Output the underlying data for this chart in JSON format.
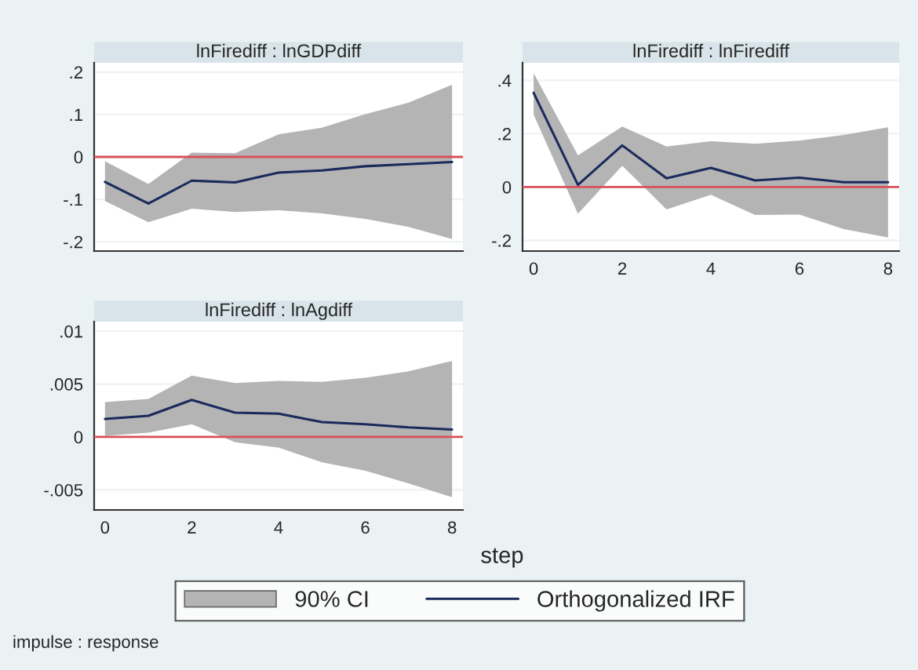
{
  "chart_data": [
    {
      "type": "line",
      "title": "lnFirediff : lnGDPdiff",
      "x": [
        0,
        1,
        2,
        3,
        4,
        5,
        6,
        7,
        8
      ],
      "xlim": [
        -0.25,
        8.25
      ],
      "xticks": [
        0,
        2,
        4,
        6,
        8
      ],
      "ylim": [
        -0.222,
        0.222
      ],
      "yticks": [
        {
          "value": -0.2,
          "label": "-.2"
        },
        {
          "value": -0.1,
          "label": "-.1"
        },
        0,
        {
          "value": 0.1,
          "label": ".1"
        },
        {
          "value": 0.2,
          "label": ".2"
        }
      ],
      "tick_labels": "y",
      "grid": "y",
      "series": [
        {
          "color": "#1a2a5c",
          "values": [
            -0.059,
            -0.11,
            -0.056,
            -0.06,
            -0.037,
            -0.032,
            -0.022,
            -0.017,
            -0.012
          ],
          "lower": [
            -0.104,
            -0.154,
            -0.122,
            -0.13,
            -0.126,
            -0.133,
            -0.146,
            -0.165,
            -0.194
          ],
          "upper": [
            -0.01,
            -0.064,
            0.01,
            0.009,
            0.053,
            0.069,
            0.101,
            0.128,
            0.17
          ]
        }
      ],
      "ref_lines": [
        {
          "axis": "y",
          "value": 0,
          "color": "#d9505a"
        }
      ]
    },
    {
      "type": "line",
      "title": "lnFirediff : lnFirediff",
      "x": [
        0,
        1,
        2,
        3,
        4,
        5,
        6,
        7,
        8
      ],
      "xlim": [
        -0.25,
        8.25
      ],
      "xticks": [
        0,
        2,
        4,
        6,
        8
      ],
      "ylim": [
        -0.24,
        0.466
      ],
      "yticks": [
        {
          "value": -0.2,
          "label": "-.2"
        },
        0,
        {
          "value": 0.2,
          "label": ".2"
        },
        {
          "value": 0.4,
          "label": ".4"
        }
      ],
      "grid": "y",
      "series": [
        {
          "color": "#1a2a5c",
          "values": [
            0.353,
            0.008,
            0.156,
            0.033,
            0.072,
            0.025,
            0.035,
            0.018,
            0.018
          ],
          "lower": [
            0.271,
            -0.1,
            0.08,
            -0.084,
            -0.029,
            -0.105,
            -0.103,
            -0.158,
            -0.189
          ],
          "upper": [
            0.427,
            0.119,
            0.227,
            0.152,
            0.172,
            0.162,
            0.174,
            0.195,
            0.224
          ]
        }
      ],
      "ref_lines": [
        {
          "axis": "y",
          "value": 0,
          "color": "#d9505a"
        }
      ]
    },
    {
      "type": "line",
      "title": "lnFirediff : lnAgdiff",
      "xlabel": "step",
      "x": [
        0,
        1,
        2,
        3,
        4,
        5,
        6,
        7,
        8
      ],
      "xlim": [
        -0.25,
        8.25
      ],
      "xticks": [
        0,
        2,
        4,
        6,
        8
      ],
      "ylim": [
        -0.0069,
        0.0109
      ],
      "yticks": [
        {
          "value": -0.005,
          "label": "-.005"
        },
        0,
        {
          "value": 0.005,
          "label": ".005"
        },
        {
          "value": 0.01,
          "label": ".01"
        }
      ],
      "grid": "y",
      "legend": "bottom",
      "series": [
        {
          "name": "Orthogonalized IRF",
          "color": "#1a2a5c",
          "values": [
            0.0017,
            0.002,
            0.0035,
            0.0023,
            0.0022,
            0.0014,
            0.0012,
            0.0009,
            0.0007
          ],
          "lower": [
            0.0001,
            0.0004,
            0.0012,
            -0.0005,
            -0.001,
            -0.0024,
            -0.0032,
            -0.0044,
            -0.0057
          ],
          "upper": [
            0.0033,
            0.0036,
            0.0058,
            0.0051,
            0.0053,
            0.0052,
            0.0056,
            0.0062,
            0.0072
          ]
        }
      ],
      "ref_lines": [
        {
          "axis": "y",
          "value": 0,
          "color": "#d9505a"
        }
      ],
      "annotations": [
        "90% CI",
        "impulse : response"
      ]
    }
  ]
}
